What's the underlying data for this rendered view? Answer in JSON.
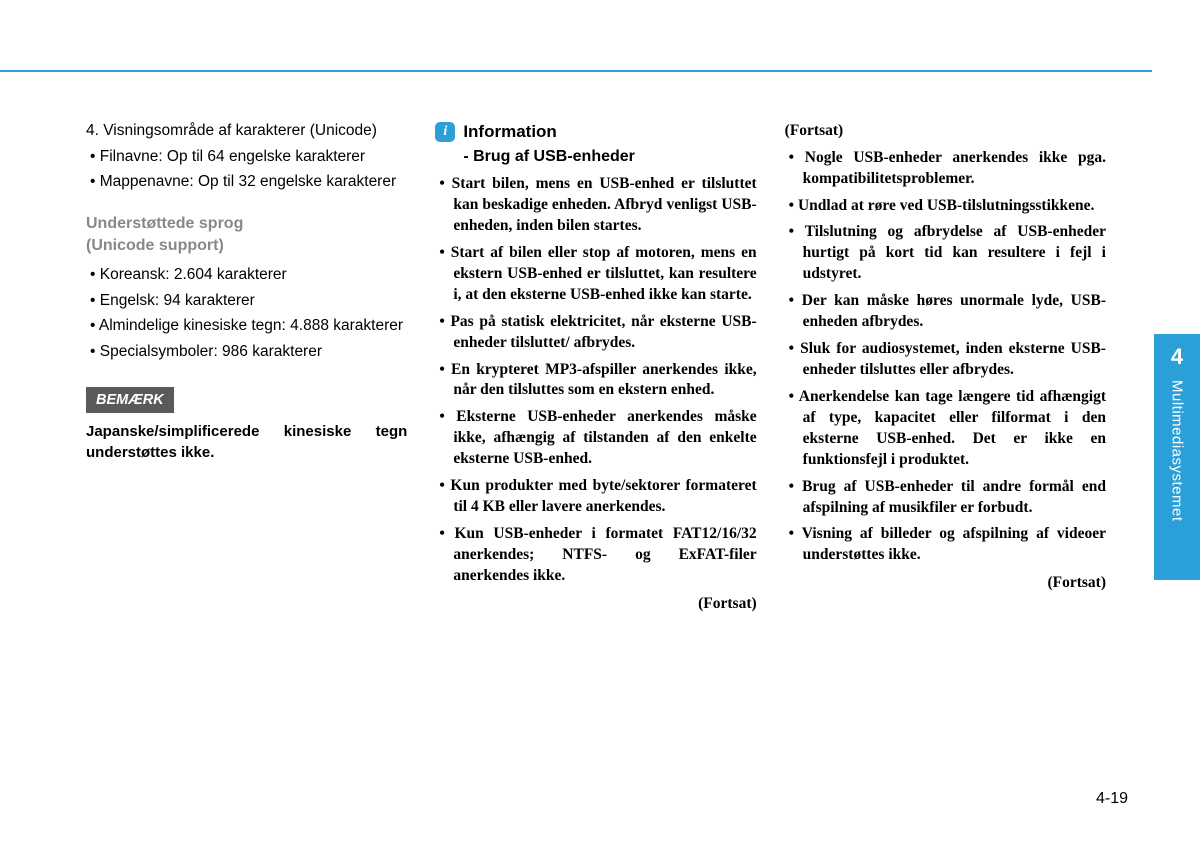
{
  "colors": {
    "accent": "#2a9fd8",
    "notice_bg": "#5a5a5a",
    "gray_heading": "#888888"
  },
  "col1": {
    "list": {
      "num4": "4. Visningsområde af karakterer (Unicode)",
      "item1": "Filnavne: Op til 64 engelske karakterer",
      "item2": "Mappenavne: Op til 32 engelske karakterer"
    },
    "lang_heading_1": "Understøttede sprog",
    "lang_heading_2": "(Unicode support)",
    "langs": {
      "a": "Koreansk: 2.604 karakterer",
      "b": "Engelsk: 94 karakterer",
      "c": "Almindelige kinesiske tegn: 4.888 karakterer",
      "d": "Specialsymboler: 986 karakterer"
    },
    "notice_label": "BEMÆRK",
    "notice_text": "Japanske/simplificerede kinesiske tegn understøttes ikke."
  },
  "col2": {
    "info_title": "Information",
    "info_sub": "- Brug af USB-enheder",
    "items": {
      "a": "Start bilen, mens en USB-enhed er tilsluttet kan beskadige enheden. Afbryd venligst USB-enheden, inden bilen startes.",
      "b": "Start af bilen eller stop af motoren, mens en ekstern USB-enhed er tilsluttet, kan resultere i, at den eksterne USB-enhed ikke kan starte.",
      "c": "Pas på statisk elektricitet, når eksterne USB-enheder tilsluttet/ afbrydes.",
      "d": "En krypteret MP3-afspiller anerkendes ikke, når den tilsluttes som en ekstern enhed.",
      "e": "Eksterne USB-enheder anerkendes måske ikke, afhængig af tilstanden af den enkelte eksterne USB-enhed.",
      "f": "Kun produkter med byte/sektorer formateret til 4 KB eller lavere anerkendes.",
      "g": "Kun USB-enheder i formatet FAT12/16/32 anerkendes; NTFS- og ExFAT-filer anerkendes ikke."
    },
    "continued": "(Fortsat)"
  },
  "col3": {
    "continued_top": "(Fortsat)",
    "items": {
      "a": "Nogle USB-enheder anerkendes ikke pga. kompatibilitetsproblemer.",
      "b": "Undlad at røre ved USB-tilslutningsstikkene.",
      "c": "Tilslutning og afbrydelse af USB-enheder hurtigt på kort tid kan resultere i fejl i udstyret.",
      "d": "Der kan måske høres unormale lyde, USB-enheden afbrydes.",
      "e": "Sluk for audiosystemet, inden eksterne USB-enheder tilsluttes eller afbrydes.",
      "f": "Anerkendelse kan tage længere tid afhængigt af type, kapacitet eller filformat i den eksterne USB-enhed. Det er ikke en funktionsfejl i produktet.",
      "g": "Brug af USB-enheder til andre formål end afspilning af musikfiler er forbudt.",
      "h": "Visning af billeder og afspilning af videoer understøttes ikke."
    },
    "continued": "(Fortsat)"
  },
  "side": {
    "number": "4",
    "label": "Multimediasystemet"
  },
  "page_number": "4-19"
}
